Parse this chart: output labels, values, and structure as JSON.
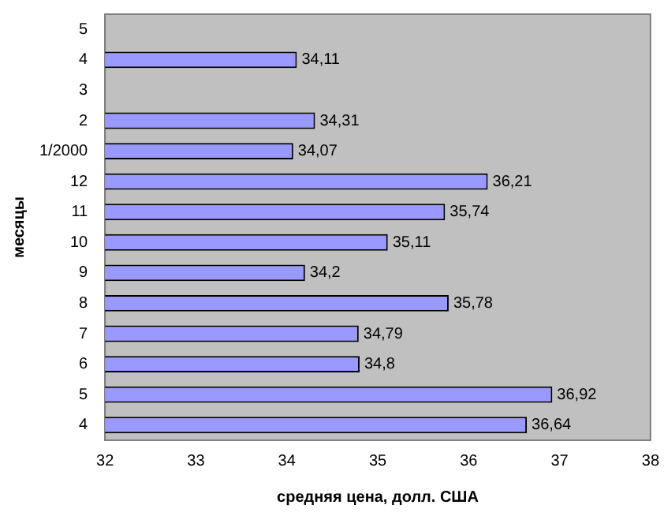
{
  "chart_data": {
    "type": "bar",
    "orientation": "horizontal",
    "xlabel": "средняя цена, долл. США",
    "ylabel": "месяцы",
    "categories": [
      "5",
      "4",
      "3",
      "2",
      "1/2000",
      "12",
      "11",
      "10",
      "9",
      "8",
      "7",
      "6",
      "5",
      "4"
    ],
    "values": [
      null,
      34.11,
      null,
      34.31,
      34.07,
      36.21,
      35.74,
      35.11,
      34.2,
      35.78,
      34.79,
      34.8,
      36.92,
      36.64
    ],
    "value_labels": [
      null,
      "34,11",
      null,
      "34,31",
      "34,07",
      "36,21",
      "35,74",
      "35,11",
      "34,2",
      "35,78",
      "34,79",
      "34,8",
      "36,92",
      "36,64"
    ],
    "color": "#9999ff",
    "xlim": [
      32,
      38
    ],
    "xticks": [
      32,
      33,
      34,
      35,
      36,
      37,
      38
    ],
    "grid": false,
    "legend": false
  }
}
